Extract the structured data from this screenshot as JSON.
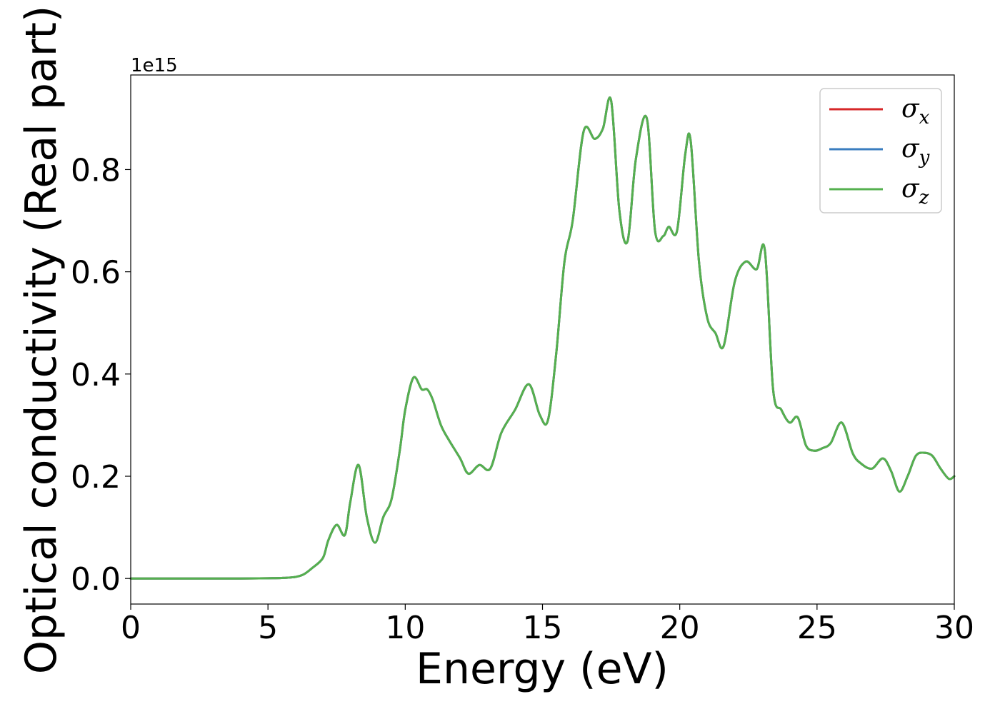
{
  "chart_data": {
    "type": "line",
    "xlabel": "Energy (eV)",
    "ylabel": "Optical conductivity (Real part)",
    "y_offset_label": "1e15",
    "xlim": [
      0,
      30
    ],
    "ylim": [
      -0.05,
      0.985
    ],
    "x_ticks": [
      0,
      5,
      10,
      15,
      20,
      25,
      30
    ],
    "x_tick_labels": [
      "0",
      "5",
      "10",
      "15",
      "20",
      "25",
      "30"
    ],
    "y_ticks": [
      0.0,
      0.2,
      0.4,
      0.6,
      0.8
    ],
    "y_tick_labels": [
      "0.0",
      "0.2",
      "0.4",
      "0.6",
      "0.8"
    ],
    "grid": false,
    "legend_position": "top-right",
    "x": [
      0,
      1,
      2,
      3,
      4,
      5,
      5.5,
      6,
      6.3,
      6.6,
      7.0,
      7.2,
      7.5,
      7.8,
      8.0,
      8.3,
      8.6,
      8.9,
      9.2,
      9.5,
      9.8,
      10.0,
      10.3,
      10.6,
      10.8,
      11.0,
      11.3,
      11.6,
      12.0,
      12.3,
      12.7,
      13.1,
      13.5,
      14.0,
      14.5,
      14.9,
      15.2,
      15.5,
      15.8,
      16.1,
      16.5,
      16.9,
      17.2,
      17.5,
      17.8,
      18.1,
      18.4,
      18.8,
      19.1,
      19.4,
      19.6,
      19.9,
      20.2,
      20.4,
      20.7,
      21.0,
      21.3,
      21.6,
      22.0,
      22.4,
      22.8,
      23.1,
      23.4,
      23.7,
      24.0,
      24.3,
      24.6,
      24.9,
      25.2,
      25.5,
      25.9,
      26.3,
      26.6,
      27.0,
      27.4,
      27.7,
      28.0,
      28.3,
      28.6,
      28.9,
      29.2,
      29.5,
      29.8,
      30.0
    ],
    "series": [
      {
        "name": "x",
        "color": "#d62728",
        "values": [
          0,
          0,
          0,
          0,
          0,
          0.0005,
          0.001,
          0.003,
          0.008,
          0.02,
          0.04,
          0.075,
          0.105,
          0.085,
          0.15,
          0.222,
          0.12,
          0.07,
          0.12,
          0.155,
          0.25,
          0.33,
          0.393,
          0.37,
          0.37,
          0.35,
          0.3,
          0.27,
          0.235,
          0.205,
          0.222,
          0.215,
          0.285,
          0.33,
          0.38,
          0.32,
          0.31,
          0.44,
          0.62,
          0.7,
          0.875,
          0.86,
          0.88,
          0.935,
          0.72,
          0.66,
          0.82,
          0.9,
          0.68,
          0.67,
          0.688,
          0.68,
          0.83,
          0.855,
          0.62,
          0.51,
          0.48,
          0.455,
          0.58,
          0.62,
          0.605,
          0.642,
          0.37,
          0.33,
          0.305,
          0.315,
          0.26,
          0.25,
          0.255,
          0.265,
          0.305,
          0.245,
          0.225,
          0.215,
          0.235,
          0.21,
          0.17,
          0.2,
          0.24,
          0.246,
          0.24,
          0.215,
          0.195,
          0.2
        ]
      },
      {
        "name": "y",
        "color": "#3a7dbf",
        "values": [
          0,
          0,
          0,
          0,
          0,
          0.0005,
          0.001,
          0.003,
          0.008,
          0.02,
          0.04,
          0.075,
          0.105,
          0.085,
          0.15,
          0.222,
          0.12,
          0.07,
          0.12,
          0.155,
          0.25,
          0.33,
          0.393,
          0.37,
          0.37,
          0.35,
          0.3,
          0.27,
          0.235,
          0.205,
          0.222,
          0.215,
          0.285,
          0.33,
          0.38,
          0.32,
          0.31,
          0.44,
          0.62,
          0.7,
          0.875,
          0.86,
          0.88,
          0.935,
          0.72,
          0.66,
          0.82,
          0.9,
          0.68,
          0.67,
          0.688,
          0.68,
          0.83,
          0.855,
          0.62,
          0.51,
          0.48,
          0.455,
          0.58,
          0.62,
          0.605,
          0.642,
          0.37,
          0.33,
          0.305,
          0.315,
          0.26,
          0.25,
          0.255,
          0.265,
          0.305,
          0.245,
          0.225,
          0.215,
          0.235,
          0.21,
          0.17,
          0.2,
          0.24,
          0.246,
          0.24,
          0.215,
          0.195,
          0.2
        ]
      },
      {
        "name": "z",
        "color": "#55b04f",
        "values": [
          0,
          0,
          0,
          0,
          0,
          0.0005,
          0.001,
          0.003,
          0.008,
          0.02,
          0.04,
          0.075,
          0.105,
          0.085,
          0.15,
          0.222,
          0.12,
          0.07,
          0.12,
          0.155,
          0.25,
          0.33,
          0.393,
          0.37,
          0.37,
          0.35,
          0.3,
          0.27,
          0.235,
          0.205,
          0.222,
          0.215,
          0.285,
          0.33,
          0.38,
          0.32,
          0.31,
          0.44,
          0.62,
          0.7,
          0.875,
          0.86,
          0.88,
          0.935,
          0.72,
          0.66,
          0.82,
          0.9,
          0.68,
          0.67,
          0.688,
          0.68,
          0.83,
          0.855,
          0.62,
          0.51,
          0.48,
          0.455,
          0.58,
          0.62,
          0.605,
          0.642,
          0.37,
          0.33,
          0.305,
          0.315,
          0.26,
          0.25,
          0.255,
          0.265,
          0.305,
          0.245,
          0.225,
          0.215,
          0.235,
          0.21,
          0.17,
          0.2,
          0.24,
          0.246,
          0.24,
          0.215,
          0.195,
          0.2
        ]
      }
    ],
    "legend": [
      {
        "symbol": "σ",
        "sub": "x",
        "color": "#d62728"
      },
      {
        "symbol": "σ",
        "sub": "y",
        "color": "#3a7dbf"
      },
      {
        "symbol": "σ",
        "sub": "z",
        "color": "#55b04f"
      }
    ]
  }
}
